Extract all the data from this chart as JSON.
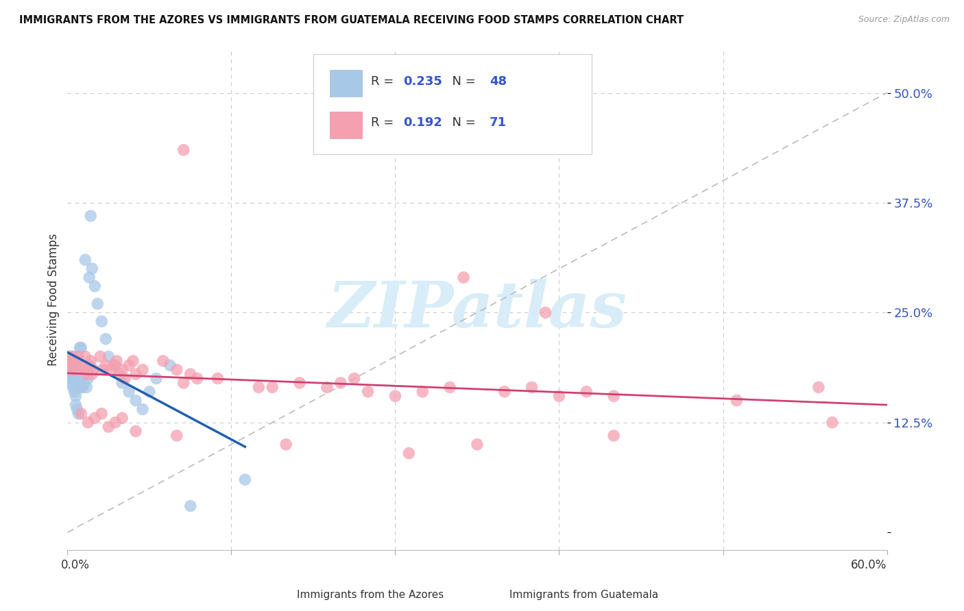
{
  "title": "IMMIGRANTS FROM THE AZORES VS IMMIGRANTS FROM GUATEMALA RECEIVING FOOD STAMPS CORRELATION CHART",
  "source": "Source: ZipAtlas.com",
  "ylabel": "Receiving Food Stamps",
  "xlim": [
    0.0,
    0.6
  ],
  "ylim": [
    -0.02,
    0.55
  ],
  "yticks": [
    0.0,
    0.125,
    0.25,
    0.375,
    0.5
  ],
  "ytick_labels": [
    "",
    "12.5%",
    "25.0%",
    "37.5%",
    "50.0%"
  ],
  "grid_color": "#cccccc",
  "background_color": "#ffffff",
  "azores_color": "#a8c8e8",
  "guatemala_color": "#f4a0b0",
  "trendline_azores_color": "#2060b0",
  "trendline_guatemala_color": "#d04070",
  "diagonal_color": "#bbbbbb",
  "R_azores": 0.235,
  "N_azores": 48,
  "R_guatemala": 0.192,
  "N_guatemala": 71,
  "watermark_text": "ZIPatlas",
  "watermark_color": "#d8edf8",
  "legend_label_azores": "Immigrants from the Azores",
  "legend_label_guatemala": "Immigrants from Guatemala"
}
